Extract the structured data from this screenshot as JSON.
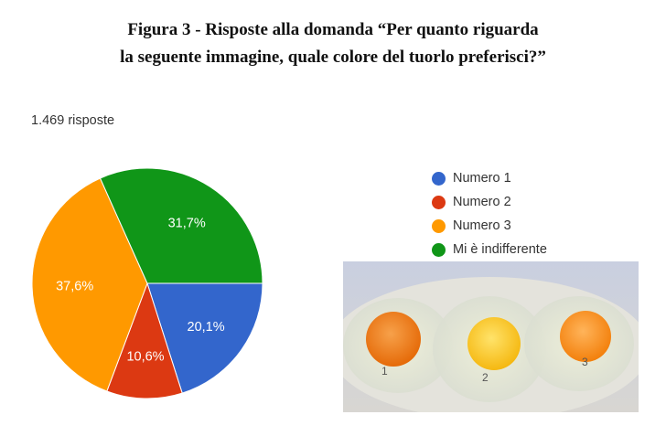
{
  "caption": {
    "line1": "Figura 3 - Risposte alla domanda “Per quanto riguarda",
    "line2": "la seguente immagine, quale colore del tuorlo preferisci?”"
  },
  "response_count": "1.469 risposte",
  "chart_data": {
    "type": "pie",
    "title": "",
    "slices": [
      {
        "label": "Numero 1",
        "value": 20.1,
        "value_label": "20,1%",
        "color": "#3366cc"
      },
      {
        "label": "Numero 2",
        "value": 10.6,
        "value_label": "10,6%",
        "color": "#dc3912"
      },
      {
        "label": "Numero 3",
        "value": 37.6,
        "value_label": "37,6%",
        "color": "#ff9900"
      },
      {
        "label": "Mi è indifferente",
        "value": 31.7,
        "value_label": "31,7%",
        "color": "#109618"
      }
    ],
    "legend_position": "right"
  },
  "photo": {
    "egg_labels": [
      "1",
      "2",
      "3"
    ],
    "yolk_colors": [
      "#f07a0e",
      "#ffc81e",
      "#fb8f14"
    ]
  }
}
